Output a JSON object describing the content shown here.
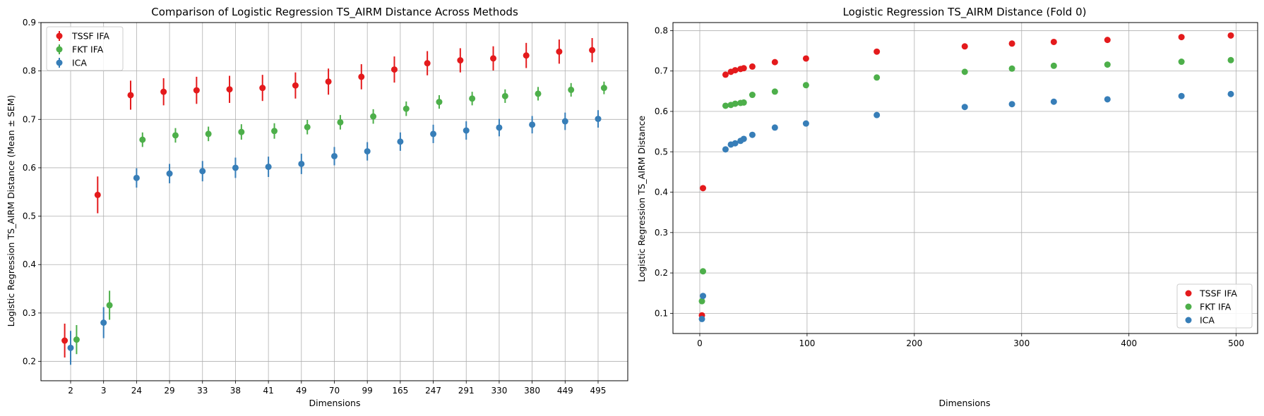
{
  "chart_data": [
    {
      "type": "scatter",
      "title": "Comparison of Logistic Regression TS_AIRM Distance Across Methods",
      "xlabel": "Dimensions",
      "ylabel": "Logistic Regression TS_AIRM Distance (Mean ± SEM)",
      "categories": [
        "2",
        "3",
        "24",
        "29",
        "33",
        "38",
        "41",
        "49",
        "70",
        "99",
        "165",
        "247",
        "291",
        "330",
        "380",
        "449",
        "495"
      ],
      "ylim": [
        0.16,
        0.9
      ],
      "yticks": [
        0.2,
        0.3,
        0.4,
        0.5,
        0.6,
        0.7,
        0.8,
        0.9
      ],
      "grid": true,
      "legend_position": "top-left",
      "error_bars": "SEM",
      "series": [
        {
          "name": "TSSF IFA",
          "color": "#e41a1c",
          "values": [
            0.243,
            0.544,
            0.75,
            0.757,
            0.76,
            0.762,
            0.765,
            0.77,
            0.778,
            0.788,
            0.803,
            0.816,
            0.822,
            0.826,
            0.832,
            0.84,
            0.843
          ],
          "errors": [
            0.035,
            0.038,
            0.03,
            0.028,
            0.028,
            0.028,
            0.027,
            0.027,
            0.027,
            0.026,
            0.027,
            0.025,
            0.025,
            0.025,
            0.026,
            0.025,
            0.025
          ]
        },
        {
          "name": "FKT IFA",
          "color": "#4daf4a",
          "values": [
            0.245,
            0.316,
            0.658,
            0.667,
            0.67,
            0.674,
            0.676,
            0.684,
            0.694,
            0.706,
            0.722,
            0.736,
            0.743,
            0.748,
            0.753,
            0.761,
            0.765
          ],
          "errors": [
            0.03,
            0.03,
            0.015,
            0.015,
            0.015,
            0.016,
            0.016,
            0.015,
            0.015,
            0.015,
            0.015,
            0.014,
            0.014,
            0.014,
            0.014,
            0.014,
            0.013
          ]
        },
        {
          "name": "ICA",
          "color": "#377eb8",
          "values": [
            0.228,
            0.28,
            0.579,
            0.588,
            0.593,
            0.6,
            0.602,
            0.608,
            0.624,
            0.634,
            0.654,
            0.67,
            0.677,
            0.683,
            0.689,
            0.696,
            0.701
          ],
          "errors": [
            0.035,
            0.032,
            0.02,
            0.02,
            0.021,
            0.021,
            0.021,
            0.021,
            0.019,
            0.019,
            0.019,
            0.019,
            0.019,
            0.018,
            0.018,
            0.018,
            0.018
          ]
        }
      ]
    },
    {
      "type": "scatter",
      "title": "Logistic Regression TS_AIRM Distance (Fold 0)",
      "xlabel": "Dimensions",
      "ylabel": "Logistic Regression TS_AIRM Distance",
      "xlim": [
        -25,
        520
      ],
      "ylim": [
        0.05,
        0.82
      ],
      "xticks": [
        0,
        100,
        200,
        300,
        400,
        500
      ],
      "yticks": [
        0.1,
        0.2,
        0.3,
        0.4,
        0.5,
        0.6,
        0.7,
        0.8
      ],
      "grid": true,
      "legend_position": "bottom-right",
      "x": [
        2,
        3,
        24,
        29,
        33,
        38,
        41,
        49,
        70,
        99,
        165,
        247,
        291,
        330,
        380,
        449,
        495
      ],
      "series": [
        {
          "name": "TSSF IFA",
          "color": "#e41a1c",
          "values": [
            0.095,
            0.41,
            0.691,
            0.698,
            0.702,
            0.705,
            0.707,
            0.711,
            0.722,
            0.731,
            0.748,
            0.761,
            0.768,
            0.772,
            0.777,
            0.784,
            0.788
          ]
        },
        {
          "name": "FKT IFA",
          "color": "#4daf4a",
          "values": [
            0.13,
            0.204,
            0.614,
            0.616,
            0.619,
            0.621,
            0.622,
            0.641,
            0.649,
            0.665,
            0.684,
            0.698,
            0.706,
            0.713,
            0.716,
            0.723,
            0.727
          ]
        },
        {
          "name": "ICA",
          "color": "#377eb8",
          "values": [
            0.086,
            0.143,
            0.506,
            0.518,
            0.521,
            0.527,
            0.532,
            0.542,
            0.56,
            0.57,
            0.591,
            0.611,
            0.618,
            0.624,
            0.63,
            0.638,
            0.643
          ]
        }
      ]
    }
  ]
}
